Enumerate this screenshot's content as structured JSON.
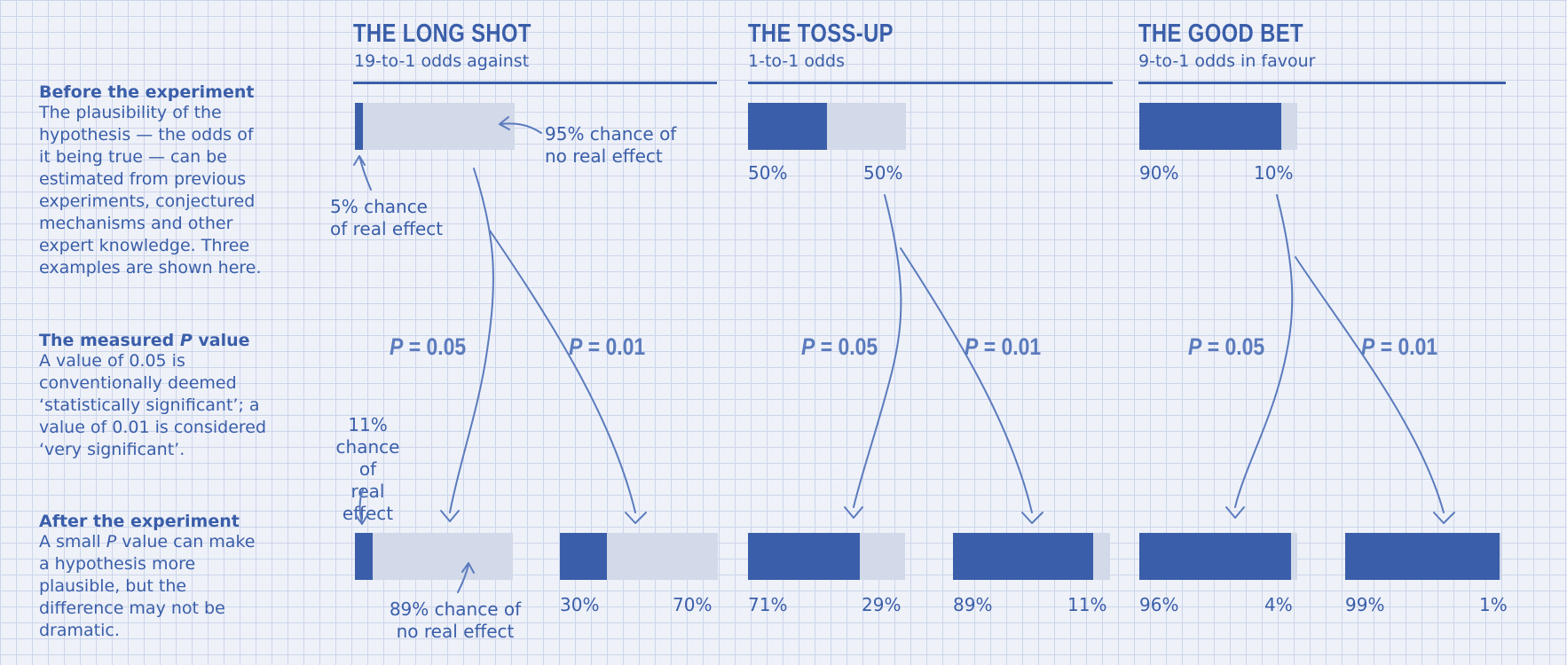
{
  "sidebar": {
    "before": {
      "title": "Before the experiment",
      "text": "The plausibility of the\nhypothesis — the odds of\nit being true — can be\nestimated from previous\nexperiments, conjectured\nmechanisms and other\nexpert knowledge. Three\nexamples are shown here."
    },
    "measured": {
      "title_prefix": "The measured ",
      "title_p": "P",
      "title_suffix": " value",
      "text": "A value of 0.05 is\nconventionally deemed\n‘statistically significant’; a\nvalue of 0.01 is considered\n‘very significant’."
    },
    "after": {
      "title": "After the experiment",
      "text_l1_a": "A small ",
      "text_l1_p": "P",
      "text_l1_b": " value can make",
      "text_rest": "a hypothesis more\nplausible, but the\ndifference may not be\ndramatic."
    }
  },
  "columns": [
    {
      "title": "THE LONG SHOT",
      "subtitle": "19-to-1 odds against",
      "before": {
        "real": 5,
        "none": 95
      },
      "after_p05": {
        "real": 11,
        "none": 89
      },
      "after_p01": {
        "real": 30,
        "none": 70,
        "label_left": "30%",
        "label_right": "70%"
      }
    },
    {
      "title": "THE TOSS-UP",
      "subtitle": "1-to-1 odds",
      "before": {
        "real": 50,
        "none": 50,
        "label_left": "50%",
        "label_right": "50%"
      },
      "after_p05": {
        "real": 71,
        "none": 29,
        "label_left": "71%",
        "label_right": "29%"
      },
      "after_p01": {
        "real": 89,
        "none": 11,
        "label_left": "89%",
        "label_right": "11%"
      }
    },
    {
      "title": "THE GOOD BET",
      "subtitle": "9-to-1 odds in favour",
      "before": {
        "real": 90,
        "none": 10,
        "label_left": "90%",
        "label_right": "10%"
      },
      "after_p05": {
        "real": 96,
        "none": 4,
        "label_left": "96%",
        "label_right": "4%"
      },
      "after_p01": {
        "real": 99,
        "none": 1,
        "label_left": "99%",
        "label_right": "1%"
      }
    }
  ],
  "p_labels": {
    "p": "P",
    "eq05": " = 0.05",
    "eq01": " = 0.01"
  },
  "annotations": {
    "no_effect_95": "95% chance of\nno real effect",
    "real_effect_5": "5% chance\nof real effect",
    "real_effect_11": "11%\nchance of\nreal effect",
    "no_effect_89": "89% chance of\nno real effect"
  },
  "colors": {
    "accent": "#3a5ea9",
    "bar_bg": "#d2d9e8",
    "grid": "#ccd5ea",
    "background": "#eef1f8"
  }
}
